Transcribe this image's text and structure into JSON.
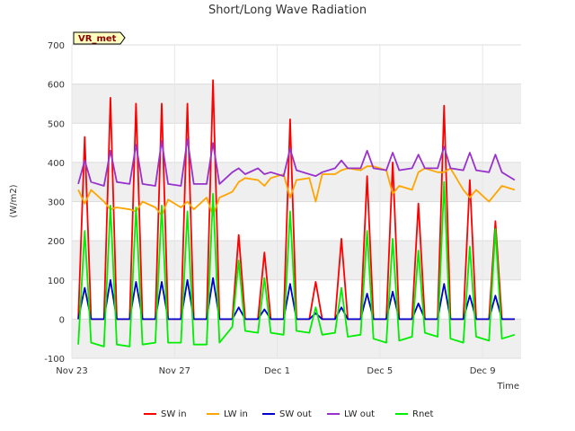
{
  "chart_data": {
    "type": "line",
    "title": "Short/Long Wave Radiation",
    "badge": "VR_met",
    "xlabel": "Time",
    "ylabel": "(W/m2)",
    "xlim": [
      "2024-11-23",
      "2024-12-10T12:00"
    ],
    "ylim": [
      -100,
      700
    ],
    "yticks": [
      -100,
      0,
      100,
      200,
      300,
      400,
      500,
      600,
      700
    ],
    "xticks": [
      {
        "date": "2024-11-23",
        "label": "Nov 23"
      },
      {
        "date": "2024-11-27",
        "label": "Nov 27"
      },
      {
        "date": "2024-12-01",
        "label": "Dec 1"
      },
      {
        "date": "2024-12-05",
        "label": "Dec 5"
      },
      {
        "date": "2024-12-09",
        "label": "Dec 9"
      }
    ],
    "grid": true,
    "legend_position": "bottom",
    "x": [
      "2024-11-23T06:00",
      "2024-11-23T12:00",
      "2024-11-23T18:00",
      "2024-11-24T06:00",
      "2024-11-24T12:00",
      "2024-11-24T18:00",
      "2024-11-25T06:00",
      "2024-11-25T12:00",
      "2024-11-25T18:00",
      "2024-11-26T06:00",
      "2024-11-26T12:00",
      "2024-11-26T18:00",
      "2024-11-27T06:00",
      "2024-11-27T12:00",
      "2024-11-27T18:00",
      "2024-11-28T06:00",
      "2024-11-28T12:00",
      "2024-11-28T18:00",
      "2024-11-29T06:00",
      "2024-11-29T12:00",
      "2024-11-29T18:00",
      "2024-11-30T06:00",
      "2024-11-30T12:00",
      "2024-11-30T18:00",
      "2024-12-01T06:00",
      "2024-12-01T12:00",
      "2024-12-01T18:00",
      "2024-12-02T06:00",
      "2024-12-02T12:00",
      "2024-12-02T18:00",
      "2024-12-03T06:00",
      "2024-12-03T12:00",
      "2024-12-03T18:00",
      "2024-12-04T06:00",
      "2024-12-04T12:00",
      "2024-12-04T18:00",
      "2024-12-05T06:00",
      "2024-12-05T12:00",
      "2024-12-05T18:00",
      "2024-12-06T06:00",
      "2024-12-06T12:00",
      "2024-12-06T18:00",
      "2024-12-07T06:00",
      "2024-12-07T12:00",
      "2024-12-07T18:00",
      "2024-12-08T06:00",
      "2024-12-08T12:00",
      "2024-12-08T18:00",
      "2024-12-09T06:00",
      "2024-12-09T12:00",
      "2024-12-09T18:00",
      "2024-12-10T06:00"
    ],
    "series": [
      {
        "name": "SW in",
        "color": "#ff0000",
        "values": [
          0,
          465,
          0,
          0,
          565,
          0,
          0,
          550,
          0,
          0,
          550,
          0,
          0,
          550,
          0,
          0,
          610,
          0,
          0,
          215,
          0,
          0,
          170,
          0,
          0,
          510,
          0,
          0,
          95,
          0,
          0,
          205,
          0,
          0,
          365,
          0,
          0,
          400,
          0,
          0,
          295,
          0,
          0,
          545,
          0,
          0,
          355,
          0,
          0,
          250,
          0,
          0
        ]
      },
      {
        "name": "LW in",
        "color": "#ffa500",
        "values": [
          330,
          295,
          330,
          300,
          280,
          285,
          280,
          275,
          300,
          285,
          265,
          305,
          285,
          300,
          280,
          310,
          265,
          310,
          325,
          350,
          360,
          355,
          340,
          360,
          370,
          310,
          355,
          360,
          300,
          370,
          370,
          380,
          385,
          380,
          390,
          390,
          380,
          320,
          340,
          330,
          375,
          385,
          375,
          375,
          385,
          330,
          310,
          330,
          300,
          320,
          340,
          330
        ]
      },
      {
        "name": "SW out",
        "color": "#0000cc",
        "values": [
          0,
          80,
          0,
          0,
          100,
          0,
          0,
          95,
          0,
          0,
          95,
          0,
          0,
          100,
          0,
          0,
          105,
          0,
          0,
          30,
          0,
          0,
          25,
          0,
          0,
          90,
          0,
          0,
          15,
          0,
          0,
          30,
          0,
          0,
          65,
          0,
          0,
          70,
          0,
          0,
          40,
          0,
          0,
          90,
          0,
          0,
          60,
          0,
          0,
          60,
          0,
          0
        ]
      },
      {
        "name": "LW out",
        "color": "#9932cc",
        "values": [
          345,
          405,
          350,
          340,
          430,
          350,
          345,
          445,
          345,
          340,
          455,
          345,
          340,
          460,
          345,
          345,
          450,
          345,
          375,
          385,
          370,
          385,
          370,
          375,
          365,
          435,
          380,
          370,
          365,
          375,
          385,
          405,
          385,
          385,
          430,
          385,
          380,
          425,
          380,
          385,
          420,
          385,
          385,
          440,
          385,
          380,
          425,
          380,
          375,
          420,
          375,
          355
        ]
      },
      {
        "name": "Rnet",
        "color": "#00ee00",
        "values": [
          -65,
          225,
          -60,
          -70,
          290,
          -65,
          -70,
          285,
          -65,
          -60,
          290,
          -60,
          -60,
          275,
          -65,
          -65,
          320,
          -60,
          -20,
          150,
          -30,
          -35,
          105,
          -35,
          -40,
          275,
          -30,
          -35,
          30,
          -40,
          -35,
          80,
          -45,
          -40,
          225,
          -50,
          -60,
          205,
          -55,
          -45,
          175,
          -35,
          -45,
          350,
          -50,
          -60,
          185,
          -45,
          -55,
          230,
          -50,
          -40
        ]
      }
    ]
  }
}
